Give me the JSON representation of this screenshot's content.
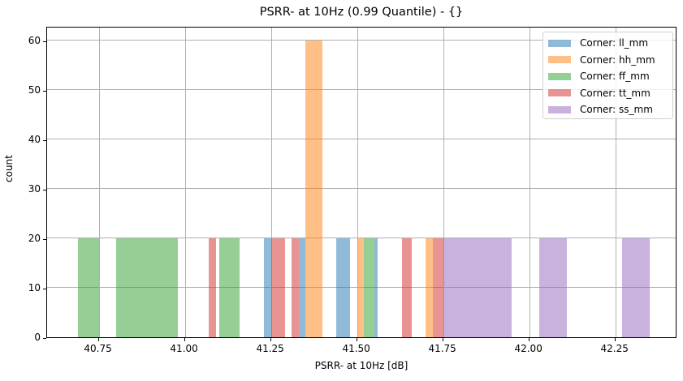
{
  "chart_data": {
    "type": "histogram",
    "title": "PSRR- at 10Hz (0.99 Quantile) - {}",
    "xlabel": "PSRR- at 10Hz [dB]",
    "ylabel": "count",
    "xlim": [
      40.6,
      42.43
    ],
    "ylim": [
      0,
      63
    ],
    "xticks": [
      40.75,
      41.0,
      41.25,
      41.5,
      41.75,
      42.0,
      42.25
    ],
    "xtick_labels": [
      "40.75",
      "41.00",
      "41.25",
      "41.50",
      "41.75",
      "42.00",
      "42.25"
    ],
    "yticks": [
      0,
      10,
      20,
      30,
      40,
      50,
      60
    ],
    "ytick_labels": [
      "0",
      "10",
      "20",
      "30",
      "40",
      "50",
      "60"
    ],
    "grid": true,
    "legend_position": "upper right",
    "bar_alpha": 0.5,
    "series": [
      {
        "name": "Corner: ll_mm",
        "color": "#1f77b4",
        "bins": [
          {
            "x0": 41.23,
            "x1": 41.25,
            "count": 20
          },
          {
            "x0": 41.33,
            "x1": 41.35,
            "count": 20
          },
          {
            "x0": 41.44,
            "x1": 41.48,
            "count": 20
          },
          {
            "x0": 41.55,
            "x1": 41.56,
            "count": 20
          }
        ]
      },
      {
        "name": "Corner: hh_mm",
        "color": "#ff7f0e",
        "bins": [
          {
            "x0": 41.35,
            "x1": 41.4,
            "count": 60
          },
          {
            "x0": 41.5,
            "x1": 41.52,
            "count": 20
          },
          {
            "x0": 41.7,
            "x1": 41.72,
            "count": 20
          }
        ]
      },
      {
        "name": "Corner: ff_mm",
        "color": "#2ca02c",
        "bins": [
          {
            "x0": 40.69,
            "x1": 40.75,
            "count": 20
          },
          {
            "x0": 40.8,
            "x1": 40.98,
            "count": 20
          },
          {
            "x0": 41.1,
            "x1": 41.16,
            "count": 20
          },
          {
            "x0": 41.52,
            "x1": 41.55,
            "count": 20
          }
        ]
      },
      {
        "name": "Corner: tt_mm",
        "color": "#d62728",
        "bins": [
          {
            "x0": 41.07,
            "x1": 41.09,
            "count": 20
          },
          {
            "x0": 41.25,
            "x1": 41.29,
            "count": 20
          },
          {
            "x0": 41.31,
            "x1": 41.33,
            "count": 20
          },
          {
            "x0": 41.63,
            "x1": 41.66,
            "count": 20
          },
          {
            "x0": 41.72,
            "x1": 41.75,
            "count": 20
          }
        ]
      },
      {
        "name": "Corner: ss_mm",
        "color": "#9467bd",
        "bins": [
          {
            "x0": 41.75,
            "x1": 41.95,
            "count": 20
          },
          {
            "x0": 42.03,
            "x1": 42.11,
            "count": 20
          },
          {
            "x0": 42.27,
            "x1": 42.35,
            "count": 20
          }
        ]
      }
    ]
  }
}
